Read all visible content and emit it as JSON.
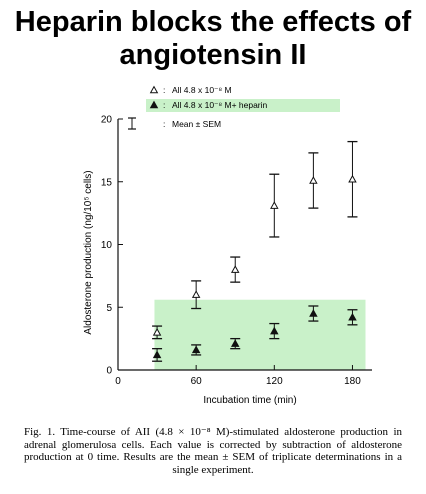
{
  "title_line1": "Heparin blocks the effects of",
  "title_line2": "angiotensin II",
  "caption": "Fig. 1. Time-course of AII (4.8 × 10⁻⁸ M)-stimulated aldosterone production in adrenal glomerulosa cells. Each value is corrected by subtraction of aldosterone production at 0 time. Results are the mean ± SEM of triplicate determinations in a single experiment.",
  "colors": {
    "highlight": "#c9f1c9",
    "ink": "#111111"
  },
  "chart_data": {
    "type": "scatter",
    "xlabel": "Incubation time (min)",
    "ylabel": "Aldosterone production (ng/10⁵ cells)",
    "xlim": [
      0,
      195
    ],
    "ylim": [
      0,
      20
    ],
    "xticks": [
      0,
      60,
      120,
      180
    ],
    "yticks": [
      0,
      5,
      10,
      15,
      20
    ],
    "legend_placement": "top-left",
    "legend": [
      {
        "marker": "open-triangle",
        "text": "All 4.8 x 10⁻⁸ M"
      },
      {
        "marker": "filled-triangle",
        "text": "All 4.8 x 10⁻⁸ M+ heparin"
      },
      {
        "marker": "errorbar",
        "text": "Mean ± SEM"
      }
    ],
    "highlight_region": {
      "x": [
        28,
        190
      ],
      "y": [
        0,
        5.6
      ]
    },
    "series": [
      {
        "marker": "open-triangle",
        "points": [
          {
            "x": 30,
            "y": 3.0,
            "err": 0.5
          },
          {
            "x": 60,
            "y": 6.0,
            "err": 1.1
          },
          {
            "x": 90,
            "y": 8.0,
            "err": 1.0
          },
          {
            "x": 120,
            "y": 13.1,
            "err": 2.5
          },
          {
            "x": 150,
            "y": 15.1,
            "err": 2.2
          },
          {
            "x": 180,
            "y": 15.2,
            "err": 3.0
          }
        ]
      },
      {
        "marker": "filled-triangle",
        "points": [
          {
            "x": 30,
            "y": 1.2,
            "err": 0.5
          },
          {
            "x": 60,
            "y": 1.6,
            "err": 0.4
          },
          {
            "x": 90,
            "y": 2.1,
            "err": 0.4
          },
          {
            "x": 120,
            "y": 3.1,
            "err": 0.6
          },
          {
            "x": 150,
            "y": 4.5,
            "err": 0.6
          },
          {
            "x": 180,
            "y": 4.2,
            "err": 0.6
          }
        ]
      }
    ]
  }
}
